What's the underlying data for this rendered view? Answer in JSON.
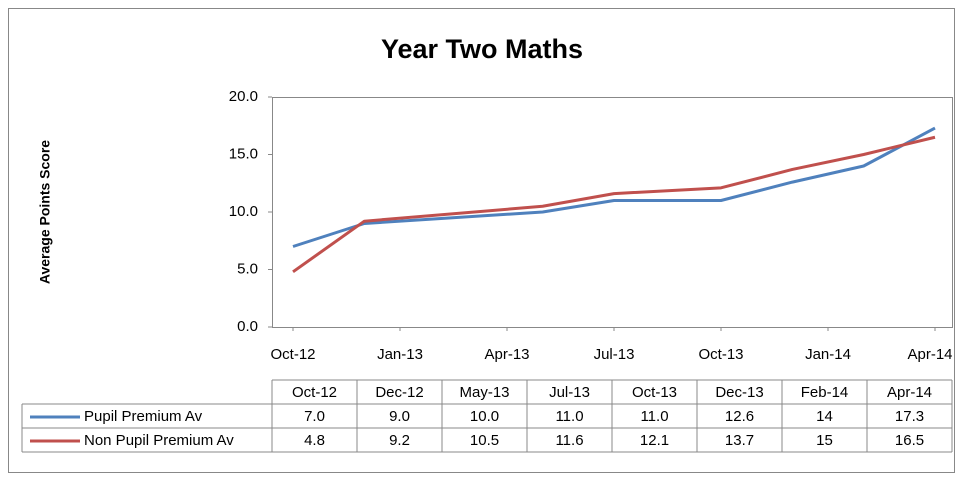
{
  "chart_data": {
    "type": "line",
    "title": "Year Two Maths",
    "y_label": "Average Points Score",
    "x": [
      "2012-10",
      "2012-12",
      "2013-05",
      "2013-07",
      "2013-10",
      "2013-12",
      "2014-02",
      "2014-04"
    ],
    "categories": [
      "Oct-12",
      "Dec-12",
      "May-13",
      "Jul-13",
      "Oct-13",
      "Dec-13",
      "Feb-14",
      "Apr-14"
    ],
    "series": [
      {
        "name": "Pupil Premium Av",
        "color": "#4f81bd",
        "values": [
          7.0,
          9.0,
          10.0,
          11.0,
          11.0,
          12.6,
          14,
          17.3
        ],
        "value_labels": [
          "7.0",
          "9.0",
          "10.0",
          "11.0",
          "11.0",
          "12.6",
          "14",
          "17.3"
        ]
      },
      {
        "name": "Non Pupil Premium Av",
        "color": "#c0504d",
        "values": [
          4.8,
          9.2,
          10.5,
          11.6,
          12.1,
          13.7,
          15,
          16.5
        ],
        "value_labels": [
          "4.8",
          "9.2",
          "10.5",
          "11.6",
          "12.1",
          "13.7",
          "15",
          "16.5"
        ]
      }
    ],
    "xlim": [
      "2012-10",
      "2014-04"
    ],
    "xticks": [
      {
        "value": "2012-10",
        "label": "Oct-12"
      },
      {
        "value": "2013-01",
        "label": "Jan-13"
      },
      {
        "value": "2013-04",
        "label": "Apr-13"
      },
      {
        "value": "2013-07",
        "label": "Jul-13"
      },
      {
        "value": "2013-10",
        "label": "Oct-13"
      },
      {
        "value": "2014-01",
        "label": "Jan-14"
      },
      {
        "value": "2014-04",
        "label": "Apr-14"
      }
    ],
    "ylim": [
      0,
      20
    ],
    "yticks": [
      {
        "value": 0,
        "label": "0.0"
      },
      {
        "value": 5,
        "label": "5.0"
      },
      {
        "value": 10,
        "label": "10.0"
      },
      {
        "value": 15,
        "label": "15.0"
      },
      {
        "value": 20,
        "label": "20.0"
      }
    ],
    "grid": false
  }
}
